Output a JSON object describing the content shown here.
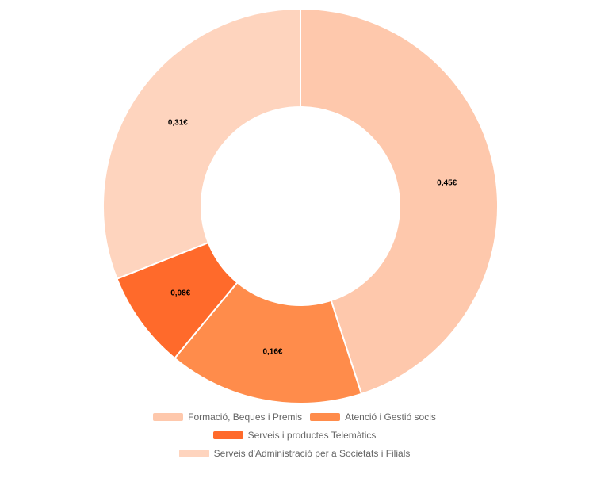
{
  "chart_data": {
    "type": "doughnut",
    "categories": [
      "Formació, Beques i Premis",
      "Atenció i Gestió socis",
      "Serveis i productes Telemàtics",
      "Serveis d'Administració per a Societats i Filials"
    ],
    "values": [
      0.45,
      0.16,
      0.08,
      0.31
    ],
    "value_labels": [
      "0,45€",
      "0,16€",
      "0,08€",
      "0,31€"
    ],
    "colors": [
      "#fec8ac",
      "#ff8c4b",
      "#ff6a2b",
      "#fed4be"
    ],
    "legend": "bottom"
  }
}
